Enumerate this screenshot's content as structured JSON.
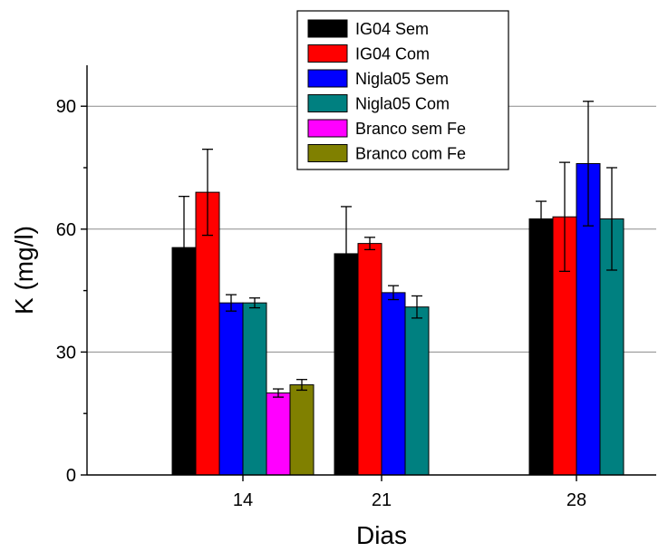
{
  "chart_data": {
    "type": "bar",
    "title": "",
    "xlabel": "Dias",
    "ylabel": "K (mg/l)",
    "categories": [
      "14",
      "21",
      "28"
    ],
    "yticks": [
      0,
      30,
      60,
      90
    ],
    "ylim": [
      0,
      100
    ],
    "grid": true,
    "legend_position": "top-center",
    "series": [
      {
        "name": "IG04 Sem",
        "color": "#000000",
        "values": [
          55.5,
          54,
          62.5
        ],
        "errors": [
          12.5,
          11.5,
          4.3
        ]
      },
      {
        "name": "IG04 Com",
        "color": "#ff0000",
        "values": [
          69,
          56.5,
          63
        ],
        "errors": [
          10.5,
          1.5,
          13.3
        ]
      },
      {
        "name": "Nigla05 Sem",
        "color": "#0000ff",
        "values": [
          42,
          44.5,
          76
        ],
        "errors": [
          2,
          1.7,
          15.2
        ]
      },
      {
        "name": "Nigla05 Com",
        "color": "#008080",
        "values": [
          42,
          41,
          62.5
        ],
        "errors": [
          1.2,
          2.7,
          12.5
        ]
      },
      {
        "name": "Branco sem Fe",
        "color": "#ff00ff",
        "values": [
          20,
          null,
          null
        ],
        "errors": [
          1,
          null,
          null
        ]
      },
      {
        "name": "Branco com Fe",
        "color": "#808000",
        "values": [
          22,
          null,
          null
        ],
        "errors": [
          1.3,
          null,
          null
        ]
      }
    ]
  }
}
